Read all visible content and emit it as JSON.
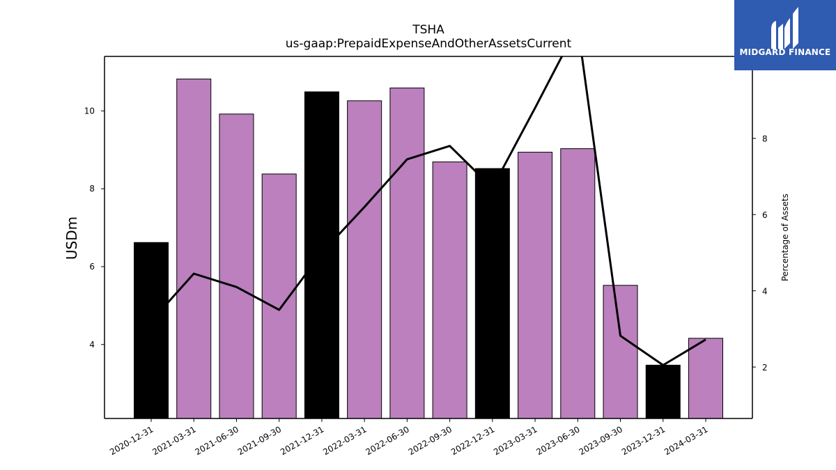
{
  "logo": {
    "text": "MIDGARD FINANCE",
    "background": "#2f5bb0"
  },
  "chart_data": {
    "type": "bar",
    "title": "TSHA",
    "subtitle": "us-gaap:PrepaidExpenseAndOtherAssetsCurrent",
    "ylabel": "USDm",
    "y2label": "Percentage of Assets",
    "ylim": [
      2.1,
      11.4
    ],
    "y2lim": [
      0.65,
      10.15
    ],
    "yticks": [
      4,
      6,
      8,
      10
    ],
    "y2ticks": [
      2,
      4,
      6,
      8
    ],
    "categories": [
      "2020-12-31",
      "2021-03-31",
      "2021-06-30",
      "2021-09-30",
      "2021-12-31",
      "2022-03-31",
      "2022-06-30",
      "2022-09-30",
      "2022-12-31",
      "2023-03-31",
      "2023-06-30",
      "2023-09-30",
      "2023-12-31",
      "2024-03-31"
    ],
    "series": [
      {
        "axis": "left",
        "kind": "bar",
        "values": [
          6.62,
          10.82,
          9.92,
          8.38,
          10.49,
          10.26,
          10.59,
          8.69,
          8.52,
          8.94,
          9.03,
          5.52,
          3.47,
          4.16
        ],
        "colors": [
          "#000000",
          "#bb80bd",
          "#bb80bd",
          "#bb80bd",
          "#000000",
          "#bb80bd",
          "#bb80bd",
          "#bb80bd",
          "#000000",
          "#bb80bd",
          "#bb80bd",
          "#bb80bd",
          "#000000",
          "#bb80bd"
        ]
      },
      {
        "axis": "right",
        "kind": "line",
        "color": "#000000",
        "values": [
          3.2,
          4.45,
          4.1,
          3.5,
          5.0,
          6.2,
          7.45,
          7.8,
          6.7,
          8.8,
          10.95,
          2.82,
          2.05,
          2.72
        ]
      }
    ],
    "grid": false,
    "legend": "none"
  }
}
